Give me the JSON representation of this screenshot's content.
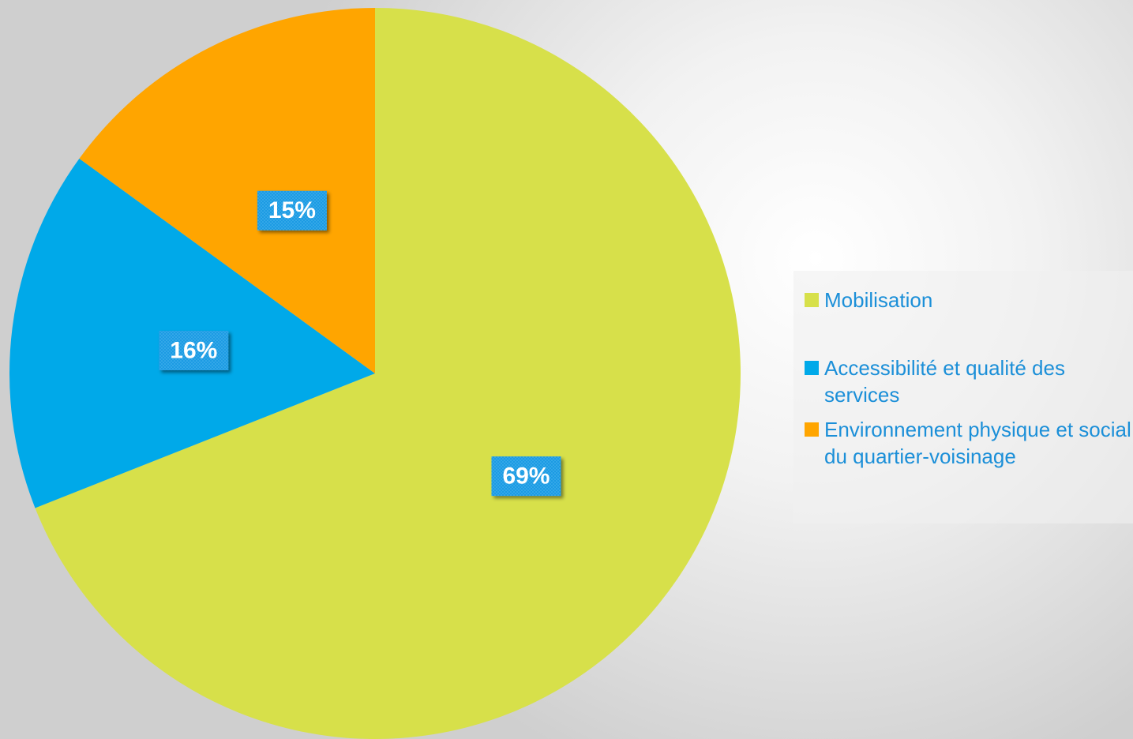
{
  "chart_data": {
    "type": "pie",
    "categories": [
      "Mobilisation",
      "Accessibilité et qualité des services",
      "Environnement physique et social du quartier-voisinage"
    ],
    "values": [
      69,
      16,
      15
    ],
    "value_labels": [
      "69%",
      "16%",
      "15%"
    ],
    "colors": [
      "#d7e04a",
      "#00a9e9",
      "#ffa500"
    ],
    "legend": "right"
  }
}
